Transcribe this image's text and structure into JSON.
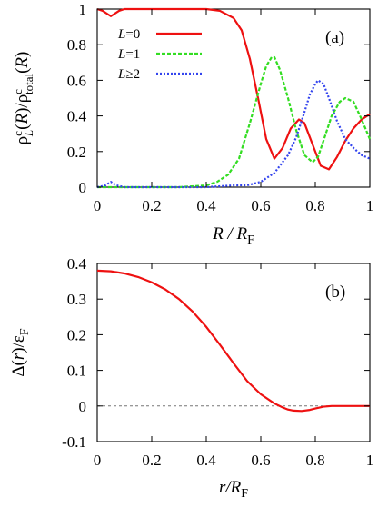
{
  "chart_data": [
    {
      "type": "line",
      "panel_label": "(a)",
      "xlabel": "R / R_F",
      "ylabel": "ρ_L^c(R)/ρ_total^c(R)",
      "xlim": [
        0,
        1
      ],
      "ylim": [
        0,
        1
      ],
      "xticks": [
        "0",
        "0.2",
        "0.4",
        "0.6",
        "0.8",
        "1"
      ],
      "yticks": [
        "0",
        "0.2",
        "0.4",
        "0.6",
        "0.8",
        "1"
      ],
      "legend_position": "top-right",
      "series": [
        {
          "name": "L=0",
          "color": "#ee1111",
          "dash": "solid",
          "x": [
            0,
            0.02,
            0.04,
            0.05,
            0.06,
            0.08,
            0.1,
            0.15,
            0.2,
            0.3,
            0.4,
            0.45,
            0.5,
            0.53,
            0.56,
            0.59,
            0.62,
            0.65,
            0.68,
            0.71,
            0.74,
            0.76,
            0.79,
            0.82,
            0.85,
            0.88,
            0.91,
            0.94,
            0.97,
            1.0
          ],
          "y": [
            1.0,
            0.99,
            0.97,
            0.96,
            0.97,
            0.99,
            1.0,
            1.0,
            1.0,
            1.0,
            1.0,
            0.99,
            0.95,
            0.88,
            0.72,
            0.5,
            0.27,
            0.16,
            0.22,
            0.33,
            0.38,
            0.36,
            0.24,
            0.12,
            0.1,
            0.17,
            0.26,
            0.33,
            0.38,
            0.41
          ]
        },
        {
          "name": "L=1",
          "color": "#33dd22",
          "dash": "4,2",
          "x": [
            0,
            0.1,
            0.2,
            0.3,
            0.4,
            0.44,
            0.48,
            0.52,
            0.56,
            0.6,
            0.62,
            0.64,
            0.65,
            0.67,
            0.7,
            0.73,
            0.76,
            0.79,
            0.81,
            0.83,
            0.86,
            0.89,
            0.91,
            0.94,
            0.97,
            1.0
          ],
          "y": [
            0,
            0,
            0,
            0,
            0.01,
            0.03,
            0.07,
            0.16,
            0.36,
            0.58,
            0.68,
            0.73,
            0.73,
            0.66,
            0.5,
            0.32,
            0.18,
            0.14,
            0.17,
            0.26,
            0.4,
            0.48,
            0.5,
            0.48,
            0.38,
            0.27
          ]
        },
        {
          "name": "L≥2",
          "color": "#3344ee",
          "dash": "2,2",
          "x": [
            0,
            0.03,
            0.05,
            0.07,
            0.1,
            0.2,
            0.3,
            0.4,
            0.5,
            0.55,
            0.6,
            0.65,
            0.7,
            0.73,
            0.76,
            0.78,
            0.8,
            0.81,
            0.83,
            0.85,
            0.88,
            0.91,
            0.94,
            0.97,
            1.0
          ],
          "y": [
            0,
            0.01,
            0.03,
            0.01,
            0,
            0,
            0,
            0,
            0.01,
            0.01,
            0.03,
            0.08,
            0.18,
            0.28,
            0.42,
            0.52,
            0.58,
            0.6,
            0.58,
            0.5,
            0.37,
            0.27,
            0.22,
            0.18,
            0.16
          ]
        }
      ]
    },
    {
      "type": "line",
      "panel_label": "(b)",
      "xlabel": "r/R_F",
      "ylabel": "Δ(r)/ε_F",
      "xlim": [
        0,
        1
      ],
      "ylim": [
        -0.1,
        0.4
      ],
      "xticks": [
        "0",
        "0.2",
        "0.4",
        "0.6",
        "0.8",
        "1"
      ],
      "yticks": [
        "-0.1",
        "0",
        "0.1",
        "0.2",
        "0.3",
        "0.4"
      ],
      "reference_line_y": 0,
      "series": [
        {
          "color": "#ee1111",
          "x": [
            0,
            0.05,
            0.1,
            0.15,
            0.2,
            0.25,
            0.3,
            0.35,
            0.4,
            0.45,
            0.5,
            0.55,
            0.6,
            0.65,
            0.68,
            0.7,
            0.72,
            0.75,
            0.78,
            0.8,
            0.83,
            0.86,
            0.9,
            0.95,
            1.0
          ],
          "y": [
            0.38,
            0.378,
            0.372,
            0.362,
            0.347,
            0.327,
            0.3,
            0.265,
            0.222,
            0.172,
            0.12,
            0.07,
            0.033,
            0.007,
            -0.004,
            -0.01,
            -0.013,
            -0.014,
            -0.011,
            -0.007,
            -0.002,
            0.0,
            0.0,
            0.0,
            0.0
          ]
        }
      ]
    }
  ]
}
